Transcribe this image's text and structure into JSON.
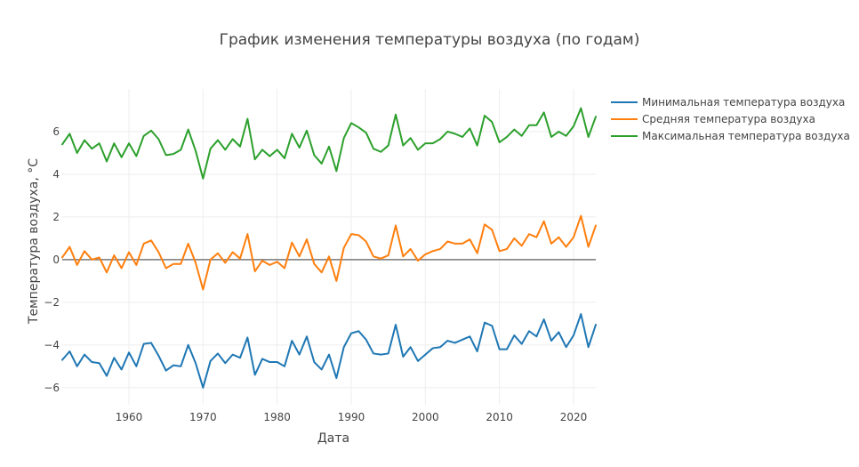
{
  "chart_data": {
    "type": "line",
    "title": "График изменения температуры воздуха (по годам)",
    "xlabel": "Дата",
    "ylabel": "Температура воздуха, °C",
    "xlim": [
      1951,
      2023
    ],
    "ylim": [
      -6.8,
      8
    ],
    "x_ticks": [
      1960,
      1970,
      1980,
      1990,
      2000,
      2010,
      2020
    ],
    "y_ticks": [
      -6,
      -4,
      -2,
      0,
      2,
      4,
      6
    ],
    "y_tick_labels": [
      "−6",
      "−4",
      "−2",
      "0",
      "2",
      "4",
      "6"
    ],
    "grid": true,
    "zero_line": true,
    "legend_position": "top-right",
    "x": [
      1951,
      1952,
      1953,
      1954,
      1955,
      1956,
      1957,
      1958,
      1959,
      1960,
      1961,
      1962,
      1963,
      1964,
      1965,
      1966,
      1967,
      1968,
      1969,
      1970,
      1971,
      1972,
      1973,
      1974,
      1975,
      1976,
      1977,
      1978,
      1979,
      1980,
      1981,
      1982,
      1983,
      1984,
      1985,
      1986,
      1987,
      1988,
      1989,
      1990,
      1991,
      1992,
      1993,
      1994,
      1995,
      1996,
      1997,
      1998,
      1999,
      2000,
      2001,
      2002,
      2003,
      2004,
      2005,
      2006,
      2007,
      2008,
      2009,
      2010,
      2011,
      2012,
      2013,
      2014,
      2015,
      2016,
      2017,
      2018,
      2019,
      2020,
      2021,
      2022,
      2023
    ],
    "series": [
      {
        "name": "Минимальная температура воздуха",
        "color": "#1f77b4",
        "values": [
          -4.7,
          -4.3,
          -5.0,
          -4.45,
          -4.8,
          -4.85,
          -5.45,
          -4.6,
          -5.15,
          -4.35,
          -5.0,
          -3.95,
          -3.9,
          -4.5,
          -5.2,
          -4.95,
          -5.0,
          -4.0,
          -4.85,
          -6.0,
          -4.75,
          -4.4,
          -4.85,
          -4.45,
          -4.6,
          -3.65,
          -5.4,
          -4.65,
          -4.8,
          -4.8,
          -5.0,
          -3.8,
          -4.45,
          -3.6,
          -4.8,
          -5.15,
          -4.45,
          -5.55,
          -4.1,
          -3.45,
          -3.35,
          -3.75,
          -4.4,
          -4.45,
          -4.4,
          -3.05,
          -4.55,
          -4.1,
          -4.75,
          -4.45,
          -4.15,
          -4.1,
          -3.8,
          -3.9,
          -3.75,
          -3.6,
          -4.3,
          -2.95,
          -3.1,
          -4.2,
          -4.2,
          -3.55,
          -3.95,
          -3.35,
          -3.6,
          -2.8,
          -3.8,
          -3.4,
          -4.1,
          -3.55,
          -2.55,
          -4.1,
          -3.05
        ]
      },
      {
        "name": "Средняя температура воздуха",
        "color": "#ff7f0e",
        "values": [
          0.1,
          0.6,
          -0.25,
          0.4,
          0.0,
          0.1,
          -0.6,
          0.2,
          -0.4,
          0.35,
          -0.25,
          0.75,
          0.9,
          0.35,
          -0.4,
          -0.2,
          -0.2,
          0.75,
          -0.15,
          -1.4,
          0.0,
          0.3,
          -0.15,
          0.35,
          0.05,
          1.2,
          -0.55,
          -0.05,
          -0.25,
          -0.1,
          -0.4,
          0.8,
          0.15,
          0.95,
          -0.2,
          -0.6,
          0.15,
          -1.0,
          0.55,
          1.2,
          1.15,
          0.85,
          0.15,
          0.05,
          0.2,
          1.6,
          0.15,
          0.5,
          -0.05,
          0.25,
          0.4,
          0.5,
          0.85,
          0.75,
          0.75,
          0.95,
          0.3,
          1.65,
          1.4,
          0.4,
          0.5,
          1.0,
          0.65,
          1.2,
          1.05,
          1.8,
          0.75,
          1.05,
          0.6,
          1.05,
          2.05,
          0.6,
          1.6
        ]
      },
      {
        "name": "Максимальная температура воздуха",
        "color": "#2ca02c",
        "values": [
          5.4,
          5.9,
          5.0,
          5.6,
          5.2,
          5.45,
          4.6,
          5.45,
          4.8,
          5.45,
          4.85,
          5.8,
          6.05,
          5.65,
          4.9,
          4.95,
          5.15,
          6.1,
          5.1,
          3.8,
          5.2,
          5.6,
          5.15,
          5.65,
          5.3,
          6.6,
          4.7,
          5.15,
          4.85,
          5.15,
          4.75,
          5.9,
          5.25,
          6.05,
          4.9,
          4.5,
          5.3,
          4.15,
          5.7,
          6.4,
          6.2,
          5.95,
          5.2,
          5.05,
          5.35,
          6.8,
          5.35,
          5.7,
          5.15,
          5.45,
          5.45,
          5.65,
          6.0,
          5.9,
          5.75,
          6.15,
          5.35,
          6.75,
          6.45,
          5.5,
          5.75,
          6.1,
          5.8,
          6.3,
          6.3,
          6.9,
          5.75,
          6.0,
          5.8,
          6.25,
          7.1,
          5.75,
          6.7
        ]
      }
    ]
  },
  "colors": {
    "grid": "#eeeeee",
    "zero_line": "#444444",
    "text": "#444444"
  }
}
